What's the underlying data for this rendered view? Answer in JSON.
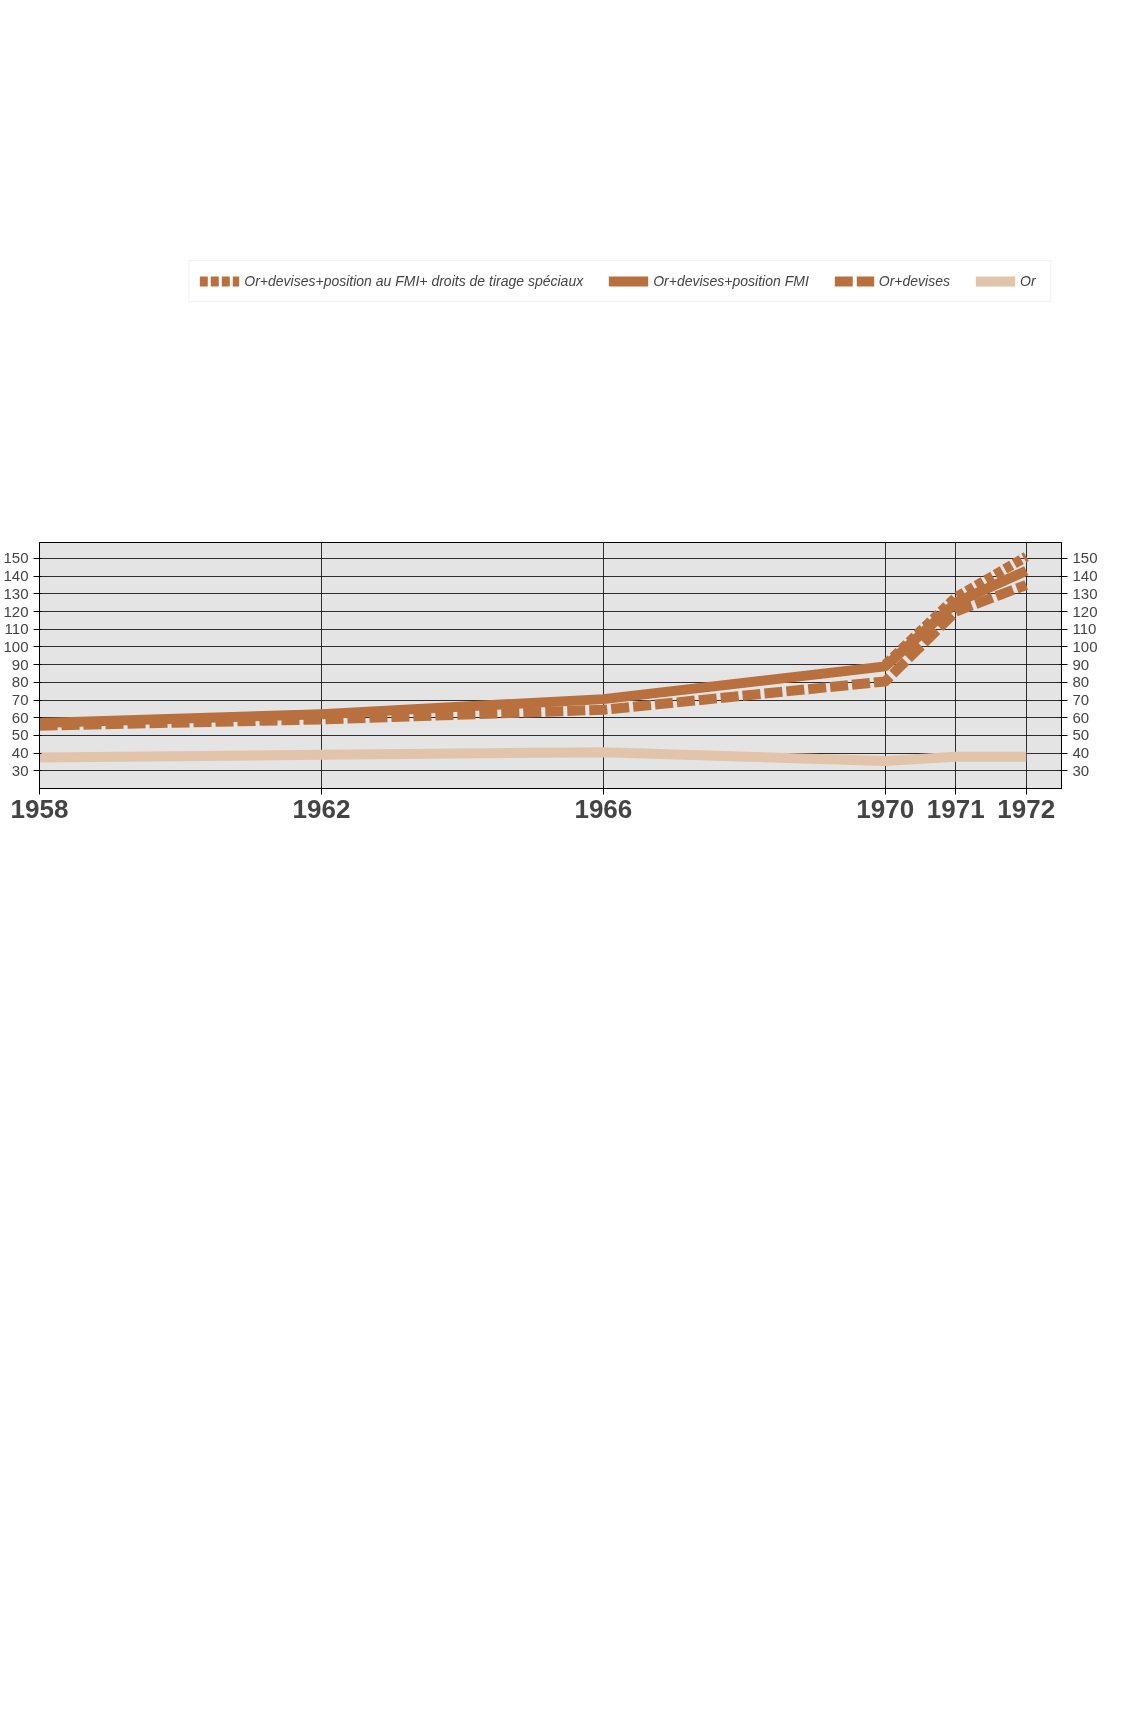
{
  "chart_data": {
    "type": "line",
    "x": [
      1958,
      1962,
      1966,
      1970,
      1971,
      1972
    ],
    "xlim": [
      1958,
      1972.5
    ],
    "xticks": [
      1958,
      1962,
      1966,
      1970,
      1971,
      1972
    ],
    "ylim": [
      20,
      159
    ],
    "yticks": [
      30,
      40,
      50,
      60,
      70,
      80,
      90,
      100,
      110,
      120,
      130,
      140,
      150
    ],
    "y2lim": [
      20,
      159
    ],
    "y2ticks": [
      30,
      40,
      50,
      60,
      70,
      80,
      90,
      100,
      110,
      120,
      130,
      140,
      150
    ],
    "series": [
      {
        "name": "Or+devises+position au FMI+ droits de tirage spéciaux",
        "color": "#b8703f",
        "line_style": "dotted",
        "values": [
          null,
          null,
          null,
          90,
          128,
          151
        ]
      },
      {
        "name": "Or+devises+position FMI",
        "color": "#b8703f",
        "line_style": "solid",
        "values": [
          57,
          62,
          70.5,
          89,
          125,
          143
        ]
      },
      {
        "name": "Or+devises",
        "color": "#b8703f",
        "line_style": "dashed",
        "values": [
          55.5,
          59,
          64.5,
          80.5,
          120,
          135
        ]
      },
      {
        "name": "Or",
        "color": "#e2c4aa",
        "line_style": "solid",
        "values": [
          37.5,
          39,
          40.5,
          35.5,
          38,
          38
        ]
      }
    ],
    "grid": true,
    "legend": "top"
  }
}
